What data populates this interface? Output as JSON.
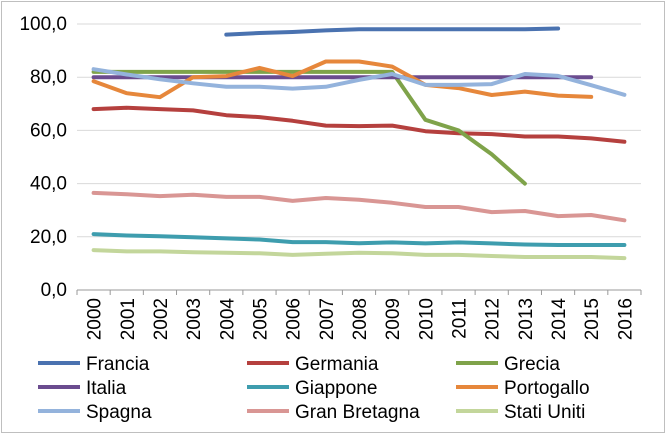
{
  "chart_data": {
    "type": "line",
    "title": "",
    "xlabel": "",
    "ylabel": "",
    "x": [
      "2000",
      "2001",
      "2002",
      "2003",
      "2004",
      "2005",
      "2006",
      "2007",
      "2008",
      "2009",
      "2010",
      "2011",
      "2012",
      "2013",
      "2014",
      "2015",
      "2016"
    ],
    "ylim": [
      0,
      100
    ],
    "yticks": [
      "0,0",
      "20,0",
      "40,0",
      "60,0",
      "80,0",
      "100,0"
    ],
    "grid": "horizontal",
    "legend_position": "bottom",
    "series": [
      {
        "name": "Francia",
        "color": "#4a72b0",
        "values": [
          null,
          null,
          null,
          null,
          96.0,
          96.6,
          97.0,
          97.6,
          98.0,
          98.0,
          98.0,
          98.0,
          98.0,
          98.0,
          98.3,
          null,
          null
        ]
      },
      {
        "name": "Germania",
        "color": "#b5403e",
        "values": [
          68.0,
          68.5,
          68.0,
          67.5,
          65.7,
          65.0,
          63.6,
          61.8,
          61.6,
          61.8,
          59.7,
          58.9,
          58.6,
          57.7,
          57.7,
          57.0,
          55.7
        ]
      },
      {
        "name": "Grecia",
        "color": "#7fa34a",
        "values": [
          82.0,
          82.0,
          82.0,
          82.0,
          82.0,
          82.0,
          82.0,
          82.0,
          82.0,
          82.0,
          64.0,
          60.0,
          51.0,
          40.0,
          null,
          null,
          null
        ]
      },
      {
        "name": "Italia",
        "color": "#6b4c8f",
        "values": [
          80.0,
          80.0,
          80.0,
          80.0,
          80.0,
          80.0,
          80.0,
          80.0,
          80.0,
          80.0,
          80.0,
          80.0,
          80.0,
          80.0,
          80.0,
          80.0,
          null
        ]
      },
      {
        "name": "Giappone",
        "color": "#3e9dae",
        "values": [
          21.0,
          20.5,
          20.2,
          19.8,
          19.4,
          19.0,
          18.0,
          18.0,
          17.6,
          17.9,
          17.5,
          17.9,
          17.5,
          17.1,
          16.9,
          16.9,
          16.9
        ]
      },
      {
        "name": "Portogallo",
        "color": "#e6873b",
        "values": [
          78.5,
          74.0,
          72.5,
          80.0,
          80.4,
          83.5,
          80.4,
          85.9,
          85.9,
          84.0,
          77.1,
          75.9,
          73.3,
          74.6,
          73.1,
          72.6,
          null
        ]
      },
      {
        "name": "Spagna",
        "color": "#94b3dc",
        "values": [
          83.0,
          81.0,
          79.2,
          77.7,
          76.4,
          76.4,
          75.7,
          76.4,
          79.0,
          81.2,
          77.1,
          77.1,
          77.4,
          81.2,
          80.5,
          77.0,
          73.4
        ]
      },
      {
        "name": "Gran Bretagna",
        "color": "#d99694",
        "values": [
          36.5,
          36.0,
          35.3,
          35.8,
          35.0,
          35.0,
          33.5,
          34.6,
          33.9,
          32.8,
          31.2,
          31.2,
          29.3,
          29.7,
          27.8,
          28.2,
          26.2
        ]
      },
      {
        "name": "Stati Uniti",
        "color": "#c3d69b",
        "values": [
          15.0,
          14.5,
          14.5,
          14.2,
          14.0,
          13.8,
          13.2,
          13.6,
          14.0,
          13.8,
          13.2,
          13.2,
          12.8,
          12.4,
          12.4,
          12.4,
          12.0
        ]
      }
    ]
  }
}
